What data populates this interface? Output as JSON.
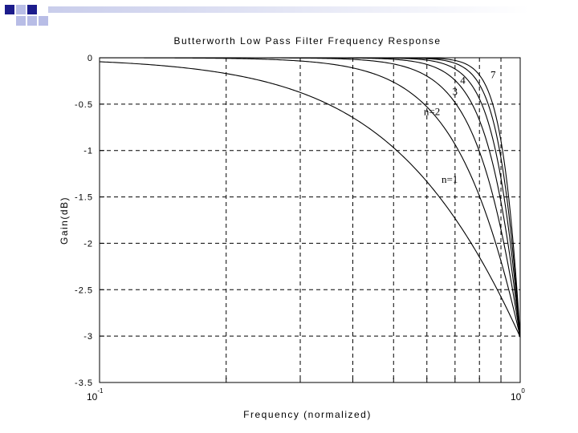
{
  "chart_data": {
    "type": "line",
    "title": "Butterworth Low Pass Filter Frequency Response",
    "xlabel": "Frequency (normalized)",
    "ylabel": "Gain(dB)",
    "xscale": "log",
    "xlim": [
      0.1,
      1
    ],
    "ylim": [
      -3.5,
      0
    ],
    "grid": true,
    "x_tick_labels": [
      {
        "base": "10",
        "exp": "-1"
      },
      {
        "base": "10",
        "exp": "0"
      }
    ],
    "y_ticks": [
      0,
      -0.5,
      -1,
      -1.5,
      -2,
      -2.5,
      -3,
      -3.5
    ],
    "y_tick_labels": [
      "0",
      "-0.5",
      "-1",
      "-1.5",
      "-2",
      "-2.5",
      "-3",
      "-3.5"
    ],
    "formula": "gain_dB = -10*log10(1 + f^(2n))",
    "series": [
      {
        "order": 1,
        "label": "n=1"
      },
      {
        "order": 2,
        "label": "n=2"
      },
      {
        "order": 3,
        "label": "3"
      },
      {
        "order": 4,
        "label": "4"
      },
      {
        "order": 5,
        "label": ""
      },
      {
        "order": 6,
        "label": ""
      },
      {
        "order": 7,
        "label": "7"
      }
    ],
    "annotations": [
      {
        "text": "n=1",
        "series_order": 1,
        "x": 0.65,
        "y": -1.35
      },
      {
        "text": "n=2",
        "series_order": 2,
        "x": 0.59,
        "y": -0.62
      },
      {
        "text": "3",
        "series_order": 3,
        "x": 0.69,
        "y": -0.4
      },
      {
        "text": "4",
        "series_order": 4,
        "x": 0.72,
        "y": -0.28
      },
      {
        "text": "7",
        "series_order": 7,
        "x": 0.85,
        "y": -0.22
      }
    ]
  },
  "colors": {
    "decoration_square_dark": "#1c1c8c",
    "decoration_square_light": "#b8bde6",
    "decoration_bar_gradient_start": "#c9cdeb",
    "decoration_bar_gradient_end": "#ffffff",
    "curve_color": "#000000",
    "grid_color": "#000000"
  }
}
